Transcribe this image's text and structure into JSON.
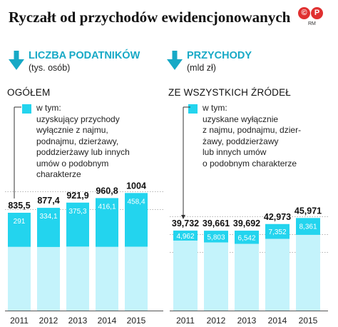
{
  "title": "Ryczałt od przychodów ewidencjonowanych",
  "logo": {
    "mark": "©P",
    "sub": "RM"
  },
  "colors": {
    "light": "#c4f3fb",
    "dark": "#23d4ee",
    "accent": "#17a9c6"
  },
  "chart_data": [
    {
      "type": "bar",
      "panel_title": "LICZBA PODATNIKÓW",
      "unit": "(tys. osób)",
      "subtitle": "OGÓŁEM",
      "legend": [
        "w tym:",
        "uzyskujący przychody",
        "wyłącznie z najmu,",
        "podnajmu, dzierżawy,",
        "poddzierżawy lub innych",
        "umów o podobnym",
        "charakterze"
      ],
      "categories": [
        "2011",
        "2012",
        "2013",
        "2014",
        "2015"
      ],
      "series": [
        {
          "values": [
            835.5,
            877.4,
            921.9,
            960.8,
            1004
          ]
        },
        {
          "values": [
            291,
            334.1,
            375.3,
            416.1,
            458.4
          ]
        }
      ],
      "total_labels": [
        "835,5",
        "877,4",
        "921,9",
        "960,8",
        "1004"
      ],
      "inner_labels": [
        "291",
        "334,1",
        "375,3",
        "416,1",
        "458,4"
      ]
    },
    {
      "type": "bar",
      "panel_title": "PRZYCHODY",
      "unit": "(mld zł)",
      "subtitle": "ZE WSZYSTKICH ŹRÓDEŁ",
      "legend": [
        "w tym:",
        "uzyskane wyłącznie",
        "z najmu, podnajmu, dzier-",
        "żawy, poddzierżawy",
        "lub innych umów",
        "o podobnym charakterze"
      ],
      "categories": [
        "2011",
        "2012",
        "2013",
        "2014",
        "2015"
      ],
      "series": [
        {
          "values": [
            39.732,
            39.661,
            39.692,
            42.973,
            45.971
          ]
        },
        {
          "values": [
            4.962,
            5.803,
            6.542,
            7.352,
            8.361
          ]
        }
      ],
      "total_labels": [
        "39,732",
        "39,661",
        "39,692",
        "42,973",
        "45,971"
      ],
      "inner_labels": [
        "4,962",
        "5,803",
        "6,542",
        "7,352",
        "8,361"
      ]
    }
  ]
}
